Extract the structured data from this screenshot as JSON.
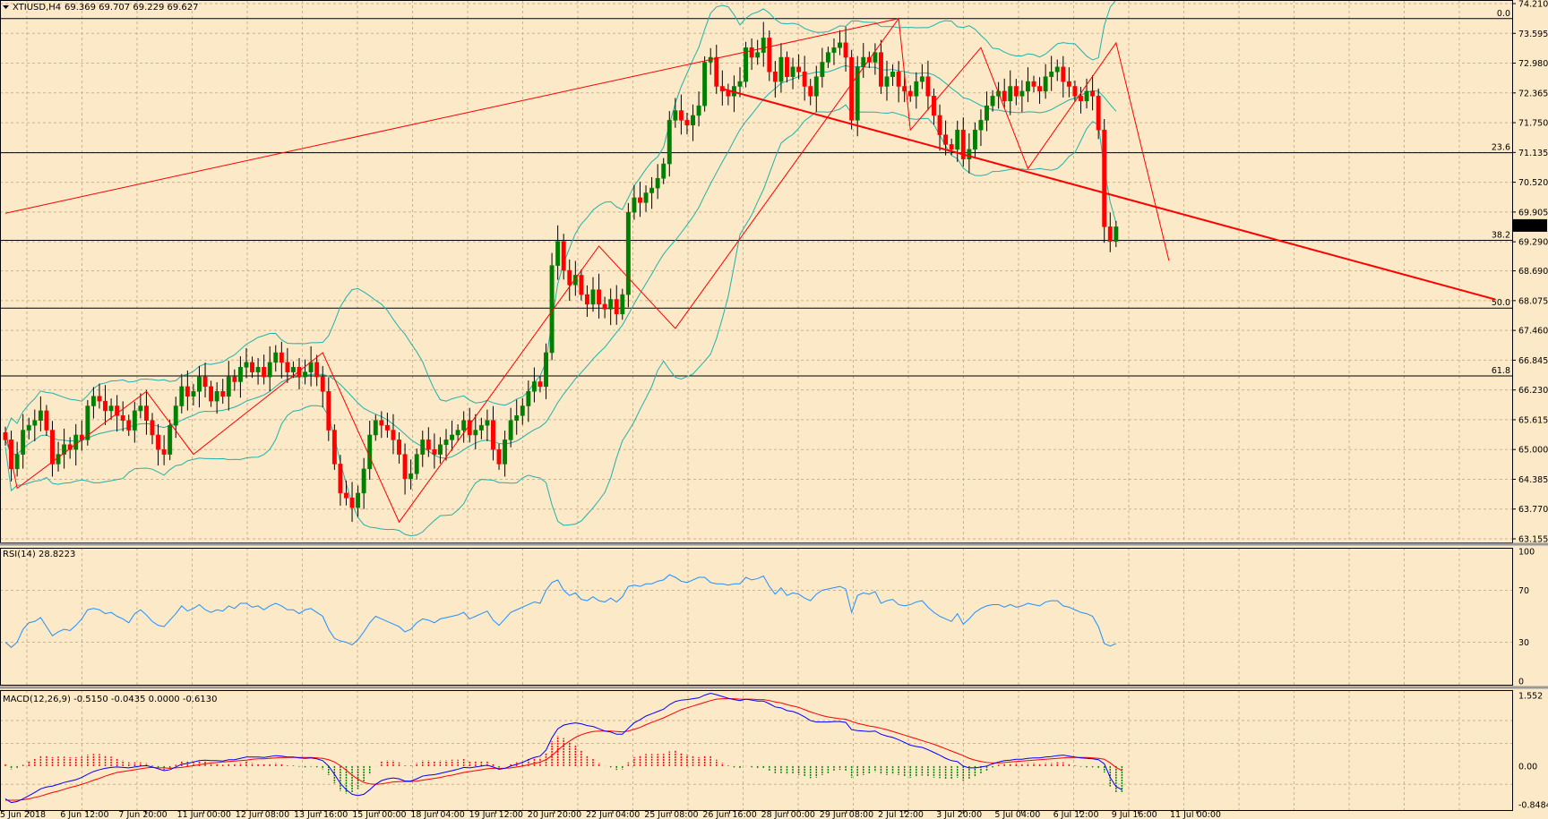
{
  "window": {
    "symbol_label": "XTIUSD,H4",
    "ohlc_label": "69.369 69.707 69.229 69.627",
    "menu_icon": "triangle-down-icon"
  },
  "colors": {
    "background": "#fce9c8",
    "grid": "#c9b48f",
    "bull_candle": "#008000",
    "bear_candle": "#ff0000",
    "bollinger": "#20b2aa",
    "zigzag": "#ff0000",
    "trendline": "#ff0000",
    "fib_line": "#000000",
    "rsi_line": "#1e90ff",
    "macd_line": "#0000ff",
    "signal_line": "#ff0000",
    "histogram_pos": "#ff0000",
    "histogram_neg": "#008000"
  },
  "chart_data": [
    {
      "type": "candlestick",
      "title": "XTIUSD,H4",
      "ylim": [
        63.155,
        74.21
      ],
      "y_ticks": [
        "74.210",
        "73.595",
        "72.980",
        "72.365",
        "71.750",
        "71.135",
        "70.520",
        "69.905",
        "69.290",
        "68.690",
        "68.075",
        "67.460",
        "66.845",
        "66.230",
        "65.615",
        "65.000",
        "64.385",
        "63.770",
        "63.155"
      ],
      "current_price": "69.627",
      "x_ticks": [
        "5 Jun 2018",
        "6 Jun 12:00",
        "7 Jun 20:00",
        "11 Jun 00:00",
        "12 Jun 08:00",
        "13 Jun 16:00",
        "15 Jun 00:00",
        "18 Jun 04:00",
        "19 Jun 12:00",
        "20 Jun 20:00",
        "22 Jun 04:00",
        "25 Jun 08:00",
        "26 Jun 16:00",
        "28 Jun 00:00",
        "29 Jun 08:00",
        "2 Jul 12:00",
        "3 Jul 20:00",
        "5 Jul 04:00",
        "6 Jul 12:00",
        "9 Jul 16:00",
        "11 Jul 00:00"
      ],
      "fibonacci_levels": [
        {
          "label": "0.0",
          "price": 73.9
        },
        {
          "label": "23.6",
          "price": 71.13
        },
        {
          "label": "38.2",
          "price": 69.32
        },
        {
          "label": "50.0",
          "price": 67.92
        },
        {
          "label": "61.8",
          "price": 66.52
        }
      ],
      "trendlines": [
        {
          "name": "rising",
          "from": [
            0,
            69.88
          ],
          "to": [
            152,
            73.9
          ]
        },
        {
          "name": "falling",
          "from": [
            122,
            72.45
          ],
          "to": [
            253.5,
            68.1
          ]
        }
      ],
      "zigzag": [
        [
          0,
          65.4
        ],
        [
          2,
          64.2
        ],
        [
          24,
          66.2
        ],
        [
          32,
          64.9
        ],
        [
          54,
          67.0
        ],
        [
          67,
          63.5
        ],
        [
          101,
          69.2
        ],
        [
          114,
          67.5
        ],
        [
          152,
          73.9
        ],
        [
          154,
          71.6
        ],
        [
          166,
          73.3
        ],
        [
          174,
          70.8
        ],
        [
          189,
          73.4
        ],
        [
          198,
          68.9
        ]
      ],
      "closes": [
        65.2,
        64.6,
        64.9,
        65.4,
        65.5,
        65.6,
        65.8,
        65.4,
        64.7,
        64.9,
        65.1,
        65.0,
        65.3,
        65.2,
        65.9,
        66.1,
        66.0,
        65.8,
        65.9,
        65.7,
        65.6,
        65.4,
        65.8,
        65.9,
        65.6,
        65.3,
        65.0,
        64.9,
        65.5,
        65.9,
        66.3,
        66.1,
        66.2,
        66.5,
        66.3,
        66.0,
        66.2,
        66.1,
        66.5,
        66.4,
        66.7,
        66.8,
        66.6,
        66.7,
        66.5,
        66.8,
        67.0,
        66.8,
        66.6,
        66.7,
        66.5,
        66.6,
        66.8,
        66.5,
        66.2,
        65.4,
        64.7,
        64.1,
        64.0,
        63.8,
        64.1,
        64.6,
        65.3,
        65.6,
        65.5,
        65.4,
        65.2,
        64.9,
        64.4,
        64.5,
        64.9,
        65.2,
        65.0,
        64.9,
        65.1,
        65.2,
        65.3,
        65.4,
        65.6,
        65.3,
        65.4,
        65.5,
        65.6,
        65.0,
        64.7,
        65.2,
        65.6,
        65.7,
        65.9,
        66.2,
        66.4,
        66.3,
        67.0,
        68.8,
        69.3,
        68.7,
        68.4,
        68.6,
        68.2,
        68.0,
        68.3,
        68.0,
        67.9,
        68.1,
        67.8,
        68.2,
        69.9,
        70.2,
        70.1,
        70.3,
        70.4,
        70.6,
        70.9,
        71.8,
        72.0,
        71.8,
        71.7,
        71.9,
        72.1,
        73.0,
        73.1,
        72.5,
        72.4,
        72.3,
        72.5,
        72.6,
        73.3,
        73.1,
        73.2,
        73.5,
        72.8,
        72.6,
        73.1,
        72.7,
        72.9,
        72.8,
        72.5,
        72.3,
        72.7,
        73.0,
        73.2,
        73.3,
        73.4,
        73.1,
        71.8,
        72.9,
        73.1,
        73.0,
        73.2,
        72.5,
        72.7,
        72.8,
        72.5,
        72.4,
        72.3,
        72.6,
        72.7,
        72.3,
        71.9,
        71.5,
        71.3,
        71.2,
        71.6,
        71.0,
        71.2,
        71.6,
        71.8,
        72.1,
        72.3,
        72.4,
        72.2,
        72.5,
        72.3,
        72.4,
        72.6,
        72.5,
        72.4,
        72.7,
        72.8,
        72.9,
        72.6,
        72.5,
        72.3,
        72.2,
        72.4,
        72.3,
        71.6,
        69.6,
        69.3,
        69.6
      ]
    },
    {
      "type": "line",
      "title": "RSI(14) 28.8223",
      "ylim": [
        0,
        100
      ],
      "y_ticks": [
        "100",
        "70",
        "30",
        "0"
      ],
      "values": [
        30,
        26,
        30,
        40,
        45,
        46,
        49,
        42,
        35,
        38,
        40,
        39,
        43,
        48,
        55,
        56,
        55,
        52,
        53,
        50,
        48,
        45,
        52,
        55,
        51,
        46,
        43,
        42,
        47,
        52,
        58,
        54,
        56,
        59,
        55,
        53,
        55,
        54,
        58,
        56,
        60,
        60,
        57,
        58,
        55,
        58,
        60,
        58,
        55,
        55,
        52,
        55,
        56,
        53,
        50,
        40,
        33,
        31,
        30,
        28,
        32,
        38,
        45,
        50,
        48,
        46,
        44,
        42,
        38,
        40,
        45,
        48,
        47,
        45,
        48,
        49,
        50,
        51,
        53,
        48,
        50,
        52,
        54,
        47,
        43,
        48,
        53,
        55,
        57,
        59,
        61,
        60,
        70,
        76,
        78,
        70,
        66,
        68,
        63,
        62,
        65,
        62,
        61,
        64,
        61,
        65,
        73,
        74,
        73,
        75,
        75,
        77,
        78,
        82,
        80,
        77,
        76,
        78,
        80,
        80,
        76,
        75,
        75,
        74,
        75,
        75,
        80,
        78,
        79,
        81,
        73,
        67,
        72,
        66,
        68,
        67,
        64,
        62,
        67,
        70,
        71,
        72,
        73,
        71,
        53,
        66,
        68,
        67,
        69,
        60,
        62,
        63,
        59,
        58,
        59,
        61,
        62,
        57,
        53,
        50,
        48,
        46,
        52,
        44,
        48,
        53,
        56,
        58,
        59,
        59,
        57,
        59,
        57,
        58,
        60,
        59,
        58,
        61,
        62,
        62,
        58,
        57,
        55,
        53,
        52,
        50,
        42,
        29,
        27,
        29
      ]
    },
    {
      "type": "line",
      "title": "MACD(12,26,9) -0.5150 -0.0435 0.0000 -0.6130",
      "ylim": [
        -0.8484,
        1.552
      ],
      "y_ticks": [
        "1.552",
        "0.00",
        "-0.8484"
      ],
      "macd": [
        -0.72,
        -0.8,
        -0.78,
        -0.72,
        -0.65,
        -0.58,
        -0.5,
        -0.46,
        -0.44,
        -0.4,
        -0.36,
        -0.33,
        -0.3,
        -0.25,
        -0.18,
        -0.12,
        -0.08,
        -0.05,
        -0.03,
        -0.02,
        -0.03,
        -0.04,
        -0.02,
        0.0,
        0.01,
        -0.02,
        -0.06,
        -0.1,
        -0.08,
        -0.02,
        0.04,
        0.06,
        0.09,
        0.12,
        0.13,
        0.12,
        0.12,
        0.11,
        0.14,
        0.14,
        0.17,
        0.2,
        0.2,
        0.2,
        0.19,
        0.21,
        0.23,
        0.22,
        0.2,
        0.2,
        0.18,
        0.17,
        0.18,
        0.16,
        0.12,
        0.0,
        -0.18,
        -0.38,
        -0.52,
        -0.62,
        -0.65,
        -0.62,
        -0.52,
        -0.4,
        -0.32,
        -0.28,
        -0.26,
        -0.28,
        -0.33,
        -0.33,
        -0.28,
        -0.22,
        -0.2,
        -0.19,
        -0.16,
        -0.13,
        -0.1,
        -0.07,
        -0.03,
        -0.04,
        -0.02,
        0.0,
        0.02,
        -0.02,
        -0.07,
        -0.05,
        0.0,
        0.04,
        0.08,
        0.14,
        0.19,
        0.22,
        0.35,
        0.62,
        0.82,
        0.9,
        0.93,
        0.95,
        0.93,
        0.89,
        0.87,
        0.82,
        0.77,
        0.75,
        0.7,
        0.7,
        0.83,
        0.95,
        1.02,
        1.1,
        1.15,
        1.2,
        1.25,
        1.35,
        1.42,
        1.45,
        1.46,
        1.48,
        1.5,
        1.56,
        1.6,
        1.57,
        1.53,
        1.49,
        1.46,
        1.44,
        1.47,
        1.45,
        1.43,
        1.43,
        1.37,
        1.3,
        1.28,
        1.22,
        1.2,
        1.15,
        1.08,
        1.0,
        0.97,
        0.97,
        0.97,
        0.98,
        0.98,
        0.96,
        0.8,
        0.78,
        0.77,
        0.76,
        0.77,
        0.7,
        0.66,
        0.63,
        0.58,
        0.52,
        0.46,
        0.43,
        0.41,
        0.36,
        0.3,
        0.24,
        0.17,
        0.12,
        0.1,
        0.0,
        -0.04,
        -0.04,
        -0.02,
        0.0,
        0.05,
        0.09,
        0.12,
        0.13,
        0.15,
        0.15,
        0.17,
        0.18,
        0.18,
        0.2,
        0.21,
        0.23,
        0.24,
        0.22,
        0.2,
        0.18,
        0.17,
        0.16,
        0.14,
        0.05,
        -0.25,
        -0.45,
        -0.52
      ],
      "signal": [
        -0.75,
        -0.75,
        -0.75,
        -0.74,
        -0.72,
        -0.69,
        -0.66,
        -0.62,
        -0.58,
        -0.55,
        -0.51,
        -0.47,
        -0.44,
        -0.4,
        -0.36,
        -0.31,
        -0.27,
        -0.22,
        -0.18,
        -0.14,
        -0.12,
        -0.1,
        -0.08,
        -0.06,
        -0.04,
        -0.03,
        -0.04,
        -0.04,
        -0.05,
        -0.04,
        -0.03,
        -0.01,
        0.01,
        0.03,
        0.05,
        0.07,
        0.08,
        0.09,
        0.1,
        0.11,
        0.12,
        0.13,
        0.15,
        0.16,
        0.16,
        0.17,
        0.18,
        0.19,
        0.19,
        0.19,
        0.19,
        0.19,
        0.19,
        0.18,
        0.17,
        0.14,
        0.09,
        0.01,
        -0.09,
        -0.2,
        -0.29,
        -0.36,
        -0.39,
        -0.4,
        -0.39,
        -0.37,
        -0.35,
        -0.34,
        -0.34,
        -0.34,
        -0.33,
        -0.31,
        -0.29,
        -0.27,
        -0.25,
        -0.22,
        -0.2,
        -0.17,
        -0.14,
        -0.12,
        -0.1,
        -0.08,
        -0.06,
        -0.05,
        -0.05,
        -0.05,
        -0.04,
        -0.02,
        0.0,
        0.03,
        0.06,
        0.09,
        0.14,
        0.23,
        0.35,
        0.46,
        0.55,
        0.63,
        0.69,
        0.73,
        0.76,
        0.77,
        0.77,
        0.77,
        0.76,
        0.75,
        0.77,
        0.81,
        0.85,
        0.91,
        0.96,
        1.01,
        1.06,
        1.12,
        1.18,
        1.24,
        1.28,
        1.32,
        1.36,
        1.4,
        1.44,
        1.47,
        1.48,
        1.48,
        1.48,
        1.47,
        1.47,
        1.47,
        1.46,
        1.46,
        1.44,
        1.41,
        1.39,
        1.35,
        1.32,
        1.29,
        1.24,
        1.19,
        1.15,
        1.11,
        1.08,
        1.06,
        1.04,
        1.03,
        0.98,
        0.94,
        0.91,
        0.88,
        0.86,
        0.83,
        0.8,
        0.76,
        0.72,
        0.68,
        0.64,
        0.6,
        0.56,
        0.52,
        0.48,
        0.43,
        0.38,
        0.33,
        0.28,
        0.23,
        0.17,
        0.13,
        0.1,
        0.08,
        0.07,
        0.07,
        0.08,
        0.09,
        0.1,
        0.11,
        0.12,
        0.13,
        0.14,
        0.15,
        0.16,
        0.17,
        0.18,
        0.19,
        0.19,
        0.19,
        0.19,
        0.18,
        0.17,
        0.15,
        0.07,
        -0.03,
        -0.1
      ]
    }
  ]
}
